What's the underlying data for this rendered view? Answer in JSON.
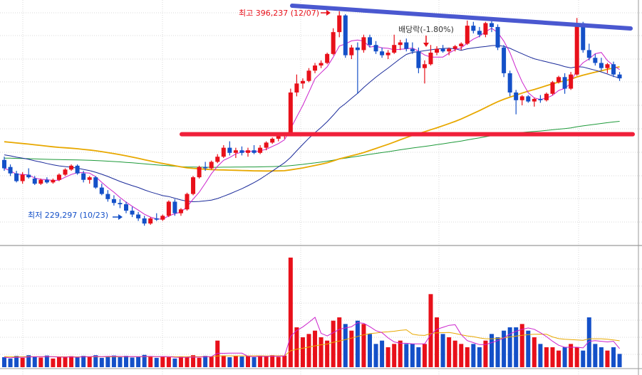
{
  "annotations": {
    "high_label": "최고 396,237 (12/07)",
    "low_label": "최저 229,297 (10/23)",
    "dividend_label": "배당락(-1.80%)"
  },
  "colors": {
    "up": "#e8101a",
    "down": "#1450c8",
    "ma5": "#cc22cc",
    "ma20": "#1a2a9a",
    "ma60": "#e8a800",
    "ma120": "#1e9a3a",
    "support_line": "#f0203a",
    "resistance_line": "#4a58d0",
    "grid": "#d8d8d8"
  },
  "chart_data": [
    {
      "type": "candlestick",
      "title": "",
      "xlabel": "",
      "ylabel": "",
      "ylim": [
        215000,
        405000
      ],
      "grid": true,
      "legend": "none",
      "ohlc": [
        [
          280500,
          283000,
          272000,
          274000
        ],
        [
          275000,
          277000,
          268000,
          270000
        ],
        [
          270000,
          272000,
          263000,
          264000
        ],
        [
          264000,
          271000,
          262000,
          269000
        ],
        [
          269000,
          274000,
          266000,
          267000
        ],
        [
          266000,
          268000,
          261000,
          262000
        ],
        [
          262000,
          266000,
          261000,
          265000
        ],
        [
          265000,
          267000,
          262000,
          263000
        ],
        [
          263000,
          266000,
          262000,
          265000
        ],
        [
          265000,
          270000,
          264000,
          269000
        ],
        [
          269000,
          274000,
          268000,
          273000
        ],
        [
          273000,
          277000,
          272000,
          276000
        ],
        [
          276000,
          277000,
          269000,
          270000
        ],
        [
          270000,
          272000,
          263000,
          265000
        ],
        [
          265000,
          268000,
          262000,
          267000
        ],
        [
          267000,
          268000,
          258000,
          259000
        ],
        [
          259000,
          262000,
          253000,
          254000
        ],
        [
          254000,
          257000,
          248000,
          250000
        ],
        [
          250000,
          253000,
          245000,
          247000
        ],
        [
          247000,
          250000,
          243000,
          246000
        ],
        [
          246000,
          248000,
          239000,
          241000
        ],
        [
          241000,
          244000,
          236000,
          238000
        ],
        [
          238000,
          240000,
          233000,
          235000
        ],
        [
          235000,
          237000,
          229297,
          231000
        ],
        [
          231000,
          236000,
          230000,
          235000
        ],
        [
          235000,
          239000,
          233000,
          234000
        ],
        [
          234000,
          238000,
          233000,
          237000
        ],
        [
          237000,
          249000,
          236000,
          248000
        ],
        [
          248000,
          250000,
          237000,
          239000
        ],
        [
          239000,
          243000,
          237000,
          242000
        ],
        [
          242000,
          255000,
          241000,
          254000
        ],
        [
          254000,
          268000,
          253000,
          267000
        ],
        [
          267000,
          276000,
          266000,
          275000
        ],
        [
          275000,
          279000,
          272000,
          274000
        ],
        [
          274000,
          280000,
          273000,
          279000
        ],
        [
          279000,
          285000,
          278000,
          283000
        ],
        [
          283000,
          292000,
          282000,
          290000
        ],
        [
          290000,
          295000,
          284000,
          286000
        ],
        [
          286000,
          290000,
          282000,
          288000
        ],
        [
          288000,
          291000,
          284000,
          286000
        ],
        [
          286000,
          290000,
          283000,
          288000
        ],
        [
          288000,
          292000,
          285000,
          286000
        ],
        [
          286000,
          292000,
          285000,
          290000
        ],
        [
          290000,
          295000,
          288000,
          294000
        ],
        [
          294000,
          298000,
          293000,
          297000
        ],
        [
          297000,
          301000,
          295000,
          299000
        ],
        [
          299000,
          302000,
          297000,
          301000
        ],
        [
          301000,
          336000,
          300000,
          333000
        ],
        [
          333000,
          347000,
          330000,
          340000
        ],
        [
          340000,
          344000,
          336000,
          342000
        ],
        [
          342000,
          352000,
          341000,
          350000
        ],
        [
          350000,
          356000,
          348000,
          354000
        ],
        [
          354000,
          358000,
          352000,
          356000
        ],
        [
          356000,
          364000,
          355000,
          363000
        ],
        [
          363000,
          383000,
          362000,
          380000
        ],
        [
          380000,
          396237,
          376000,
          393000
        ],
        [
          393000,
          394000,
          360000,
          362000
        ],
        [
          362000,
          370000,
          359000,
          368000
        ],
        [
          368000,
          372000,
          332000,
          366000
        ],
        [
          366000,
          378000,
          364000,
          376000
        ],
        [
          376000,
          378000,
          368000,
          370000
        ],
        [
          370000,
          373000,
          363000,
          365000
        ],
        [
          365000,
          368000,
          360000,
          362000
        ],
        [
          362000,
          366000,
          359000,
          364000
        ],
        [
          364000,
          378000,
          363000,
          370000
        ],
        [
          370000,
          374000,
          366000,
          372000
        ],
        [
          372000,
          375000,
          365000,
          367000
        ],
        [
          367000,
          372000,
          363000,
          365000
        ],
        [
          365000,
          368000,
          348000,
          352000
        ],
        [
          352000,
          358000,
          340000,
          355000
        ],
        [
          355000,
          370000,
          354000,
          364000
        ],
        [
          364000,
          369000,
          362000,
          367000
        ],
        [
          367000,
          370000,
          364000,
          365000
        ],
        [
          365000,
          368000,
          362000,
          367000
        ],
        [
          367000,
          370000,
          365000,
          369000
        ],
        [
          369000,
          372000,
          366000,
          371000
        ],
        [
          371000,
          389000,
          370000,
          385000
        ],
        [
          385000,
          388000,
          379000,
          381000
        ],
        [
          381000,
          384000,
          376000,
          378000
        ],
        [
          378000,
          388000,
          376000,
          387000
        ],
        [
          387000,
          390000,
          380000,
          384000
        ],
        [
          384000,
          386000,
          366000,
          368000
        ],
        [
          368000,
          370000,
          345000,
          348000
        ],
        [
          348000,
          350000,
          330000,
          333000
        ],
        [
          333000,
          335000,
          316000,
          327000
        ],
        [
          327000,
          331000,
          323000,
          330000
        ],
        [
          330000,
          331000,
          325000,
          326000
        ],
        [
          326000,
          329000,
          322000,
          328000
        ],
        [
          328000,
          331000,
          325000,
          327000
        ],
        [
          327000,
          333000,
          326000,
          332000
        ],
        [
          332000,
          342000,
          331000,
          341000
        ],
        [
          341000,
          346000,
          340000,
          345000
        ],
        [
          345000,
          348000,
          332000,
          336000
        ],
        [
          336000,
          349000,
          335000,
          347000
        ],
        [
          347000,
          391000,
          346000,
          387000
        ],
        [
          387000,
          388000,
          364000,
          366000
        ],
        [
          366000,
          371000,
          358000,
          360000
        ],
        [
          360000,
          363000,
          354000,
          356000
        ],
        [
          356000,
          360000,
          350000,
          352000
        ],
        [
          352000,
          356000,
          348000,
          355000
        ],
        [
          355000,
          357000,
          345000,
          347000
        ],
        [
          347000,
          349000,
          342000,
          344000
        ]
      ]
    },
    {
      "type": "bar",
      "title": "",
      "series_name": "Volume",
      "values": [
        3.0,
        2.6,
        3.4,
        2.8,
        3.6,
        3.2,
        2.9,
        3.5,
        2.6,
        3.0,
        3.1,
        3.3,
        2.9,
        3.4,
        3.2,
        3.6,
        2.8,
        3.3,
        3.5,
        3.0,
        3.4,
        2.9,
        3.1,
        3.7,
        3.2,
        2.8,
        3.3,
        3.0,
        2.6,
        3.1,
        2.9,
        3.6,
        2.8,
        3.4,
        3.2,
        8.0,
        3.5,
        3.0,
        3.4,
        3.2,
        3.3,
        3.0,
        3.4,
        3.2,
        3.6,
        3.1,
        3.5,
        33.0,
        12.0,
        9.0,
        10.0,
        11.0,
        9.0,
        8.0,
        14.0,
        15.0,
        13.0,
        11.0,
        14.0,
        13.0,
        10.0,
        7.0,
        8.0,
        6.0,
        7.0,
        8.0,
        7.0,
        7.0,
        6.0,
        7.0,
        22.0,
        15.0,
        10.0,
        9.0,
        8.0,
        7.0,
        6.0,
        7.0,
        6.0,
        8.0,
        10.0,
        9.0,
        11.0,
        12.0,
        12.0,
        13.0,
        11.0,
        9.0,
        7.0,
        6.0,
        6.0,
        5.0,
        6.0,
        7.0,
        6.0,
        5.0,
        15.0,
        7.0,
        6.0,
        5.0,
        6.0,
        4.0
      ],
      "ylim": [
        0,
        36
      ]
    }
  ]
}
